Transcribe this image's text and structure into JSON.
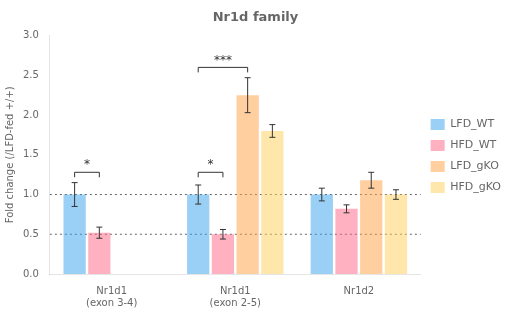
{
  "chart_data": {
    "type": "bar",
    "title": "Nr1d family",
    "ylabel": "Fold change (/LFD-fed +/+)",
    "categories": [
      "Nr1d1\n(exon 3-4)",
      "Nr1d1\n(exon 2-5)",
      "Nr1d2"
    ],
    "series": [
      {
        "name": "LFD_WT",
        "values": [
          1.0,
          1.0,
          1.0
        ],
        "errors": [
          0.15,
          0.12,
          0.08
        ]
      },
      {
        "name": "HFD_WT",
        "values": [
          0.52,
          0.5,
          0.82
        ],
        "errors": [
          0.07,
          0.06,
          0.05
        ]
      },
      {
        "name": "LFD_gKO",
        "values": [
          null,
          2.25,
          1.18
        ],
        "errors": [
          null,
          0.22,
          0.1
        ]
      },
      {
        "name": "HFD_gKO",
        "values": [
          null,
          1.8,
          1.0
        ],
        "errors": [
          null,
          0.08,
          0.06
        ]
      }
    ],
    "ylim": [
      0,
      3.0
    ],
    "yticks": [
      {
        "value": 0,
        "label": "0.0"
      },
      0.5,
      {
        "value": 1.0,
        "label": "1.0"
      },
      1.5,
      {
        "value": 2.0,
        "label": "2.0"
      },
      2.5,
      {
        "value": 3.0,
        "label": "3.0"
      }
    ],
    "grid": false,
    "legend": "right",
    "reference_lines": [
      0.5,
      1.0
    ],
    "annotations": [
      {
        "text": "*",
        "category": "Nr1d1\n(exon 3-4)",
        "series": [
          "LFD_WT",
          "HFD_WT"
        ],
        "y": 1.28
      },
      {
        "text": "*",
        "category": "Nr1d1\n(exon 2-5)",
        "series": [
          "LFD_WT",
          "HFD_WT"
        ],
        "y": 1.28
      },
      {
        "text": "***",
        "category": "Nr1d1\n(exon 2-5)",
        "series": [
          "LFD_WT",
          "LFD_gKO"
        ],
        "y": 2.6
      }
    ]
  }
}
